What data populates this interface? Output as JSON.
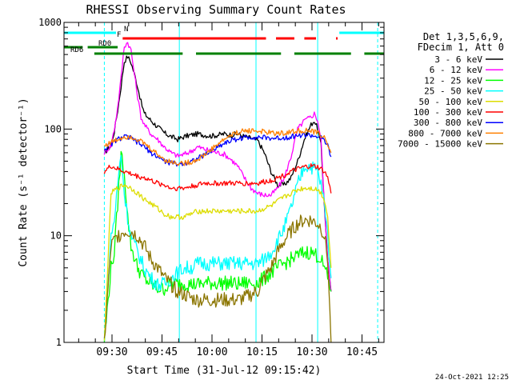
{
  "chart_data": {
    "type": "line",
    "title": "RHESSI Observing Summary Count Rates",
    "xlabel": "Start Time (31-Jul-12 09:15:42)",
    "ylabel": "Count Rate (s⁻¹ detector⁻¹)",
    "y_scale": "log",
    "ylim": [
      1,
      1000
    ],
    "xlim": [
      0,
      94
    ],
    "x_unit": "minutes after 09:15:42",
    "yticks": [
      {
        "label": "1",
        "value": 1
      },
      {
        "label": "10",
        "value": 10
      },
      {
        "label": "100",
        "value": 100
      },
      {
        "label": "1000",
        "value": 1000
      }
    ],
    "xticks": [
      {
        "label": "09:30",
        "value": 14.3
      },
      {
        "label": "09:45",
        "value": 29.3
      },
      {
        "label": "10:00",
        "value": 44.3
      },
      {
        "label": "10:15",
        "value": 59.3
      },
      {
        "label": "10:30",
        "value": 74.3
      },
      {
        "label": "10:45",
        "value": 89.3
      }
    ],
    "legend_header": [
      "Det 1,3,5,6,9,",
      "FDecim 1, Att 0"
    ],
    "series": [
      {
        "name": "3 - 6 keV",
        "color": "#000000",
        "x": [
          12,
          14,
          15,
          16,
          17,
          18,
          19,
          20,
          21,
          22,
          23,
          24,
          26,
          28,
          30,
          32,
          34,
          36,
          38,
          40,
          42,
          44,
          46,
          48,
          50,
          52,
          54,
          56,
          58,
          60,
          62,
          64,
          66,
          68,
          70,
          72,
          74,
          75,
          76,
          77,
          78,
          79,
          80
        ],
        "y": [
          60,
          70,
          95,
          150,
          250,
          430,
          480,
          420,
          330,
          250,
          180,
          140,
          120,
          105,
          92,
          85,
          80,
          85,
          88,
          90,
          88,
          86,
          88,
          90,
          88,
          90,
          85,
          82,
          78,
          60,
          40,
          30,
          30,
          35,
          50,
          80,
          110,
          120,
          100,
          70,
          20,
          6,
          3
        ]
      },
      {
        "name": "6 - 12 keV",
        "color": "#ff00ff",
        "x": [
          12,
          14,
          15,
          16,
          17,
          18,
          19,
          20,
          21,
          22,
          23,
          24,
          26,
          28,
          30,
          32,
          34,
          36,
          38,
          40,
          42,
          44,
          46,
          48,
          50,
          52,
          54,
          56,
          58,
          60,
          62,
          64,
          66,
          68,
          70,
          72,
          74,
          75,
          76,
          77,
          78,
          79,
          80
        ],
        "y": [
          60,
          70,
          100,
          160,
          300,
          600,
          650,
          550,
          330,
          200,
          130,
          110,
          90,
          80,
          68,
          60,
          56,
          58,
          62,
          68,
          65,
          62,
          60,
          58,
          52,
          45,
          35,
          28,
          25,
          24,
          24,
          28,
          35,
          55,
          100,
          120,
          130,
          140,
          120,
          80,
          20,
          6,
          3
        ]
      },
      {
        "name": "12 - 25 keV",
        "color": "#00ff00",
        "x": [
          12,
          14,
          15,
          16,
          17,
          18,
          19,
          20,
          22,
          24,
          26,
          28,
          30,
          32,
          34,
          36,
          38,
          40,
          42,
          44,
          46,
          48,
          50,
          52,
          54,
          56,
          58,
          60,
          62,
          64,
          66,
          68,
          70,
          72,
          74,
          76,
          77,
          78,
          79,
          80
        ],
        "y": [
          1,
          5,
          7,
          20,
          60,
          40,
          15,
          8,
          5,
          4,
          3.5,
          3.2,
          3.2,
          3.5,
          3.6,
          3.6,
          3.5,
          3.5,
          3.6,
          3.6,
          3.6,
          3.6,
          3.6,
          3.5,
          3.6,
          3.6,
          3.6,
          4,
          4.5,
          5,
          5.5,
          6,
          6.5,
          7,
          7,
          6.5,
          6,
          5,
          4,
          3
        ]
      },
      {
        "name": "25 - 50 keV",
        "color": "#00ffff",
        "x": [
          12,
          14,
          15,
          16,
          17,
          18,
          19,
          20,
          22,
          24,
          26,
          28,
          30,
          32,
          34,
          36,
          38,
          40,
          42,
          44,
          46,
          48,
          50,
          52,
          54,
          56,
          58,
          60,
          62,
          64,
          66,
          68,
          70,
          72,
          74,
          76,
          77,
          78,
          79,
          80
        ],
        "y": [
          1,
          10,
          14,
          30,
          60,
          25,
          15,
          10,
          7,
          5,
          4,
          3.5,
          3.5,
          4,
          4.5,
          5,
          5,
          5.5,
          5.5,
          5.5,
          5.5,
          5.5,
          5.5,
          5.5,
          5.5,
          5.5,
          5.5,
          6,
          7,
          9,
          12,
          18,
          30,
          45,
          45,
          40,
          30,
          20,
          10,
          4
        ]
      },
      {
        "name": "50 - 100 keV",
        "color": "#dddd00",
        "x": [
          12,
          14,
          16,
          18,
          20,
          22,
          24,
          26,
          28,
          30,
          32,
          34,
          36,
          38,
          40,
          42,
          44,
          46,
          48,
          50,
          52,
          54,
          56,
          58,
          60,
          62,
          64,
          66,
          68,
          70,
          72,
          74,
          76,
          77,
          78,
          79,
          80
        ],
        "y": [
          1,
          25,
          28,
          30,
          28,
          25,
          22,
          20,
          18,
          16,
          15,
          15,
          15,
          16,
          17,
          17,
          17,
          17,
          17,
          17,
          17,
          17,
          17,
          17,
          18,
          19,
          21,
          23,
          25,
          27,
          28,
          28,
          27,
          25,
          22,
          15,
          5
        ]
      },
      {
        "name": "100 - 300 keV",
        "color": "#ff0000",
        "x": [
          12,
          14,
          16,
          18,
          20,
          22,
          24,
          26,
          28,
          30,
          32,
          34,
          36,
          38,
          40,
          42,
          44,
          46,
          48,
          50,
          52,
          54,
          56,
          58,
          60,
          62,
          64,
          66,
          68,
          70,
          72,
          74,
          76,
          77,
          78,
          79,
          80
        ],
        "y": [
          40,
          45,
          42,
          40,
          38,
          36,
          35,
          33,
          31,
          30,
          28,
          28,
          28,
          29,
          30,
          31,
          31,
          31,
          31,
          31,
          31,
          31,
          31,
          31,
          32,
          33,
          35,
          37,
          40,
          42,
          44,
          45,
          44,
          42,
          40,
          35,
          25
        ]
      },
      {
        "name": "300 - 800 keV",
        "color": "#0000ff",
        "x": [
          12,
          14,
          16,
          18,
          20,
          22,
          24,
          26,
          28,
          30,
          32,
          34,
          36,
          38,
          40,
          42,
          44,
          46,
          48,
          50,
          52,
          54,
          56,
          58,
          60,
          62,
          64,
          66,
          68,
          70,
          72,
          74,
          76,
          77,
          78,
          79,
          80
        ],
        "y": [
          65,
          72,
          80,
          85,
          82,
          75,
          68,
          60,
          55,
          50,
          48,
          47,
          48,
          50,
          53,
          57,
          62,
          68,
          74,
          78,
          81,
          83,
          84,
          84,
          83,
          82,
          82,
          83,
          85,
          87,
          88,
          87,
          85,
          82,
          78,
          70,
          55
        ]
      },
      {
        "name": "800 - 7000 keV",
        "color": "#ff8000",
        "x": [
          12,
          14,
          16,
          18,
          20,
          22,
          24,
          26,
          28,
          30,
          32,
          34,
          36,
          38,
          40,
          42,
          44,
          46,
          48,
          50,
          52,
          54,
          56,
          58,
          60,
          62,
          64,
          66,
          68,
          70,
          72,
          74,
          76,
          77,
          78,
          79,
          80
        ],
        "y": [
          70,
          75,
          80,
          85,
          85,
          80,
          73,
          65,
          58,
          52,
          49,
          48,
          48,
          49,
          52,
          57,
          64,
          72,
          80,
          88,
          93,
          96,
          97,
          96,
          94,
          92,
          91,
          92,
          94,
          96,
          97,
          95,
          92,
          88,
          82,
          74,
          60
        ]
      },
      {
        "name": "7000 - 15000 keV",
        "color": "#8b7500",
        "x": [
          12,
          14,
          16,
          18,
          20,
          22,
          24,
          26,
          28,
          30,
          32,
          34,
          36,
          38,
          40,
          42,
          44,
          46,
          48,
          50,
          52,
          54,
          56,
          58,
          60,
          62,
          64,
          66,
          68,
          70,
          72,
          74,
          76,
          77,
          78,
          79,
          80
        ],
        "y": [
          1,
          8,
          10,
          11,
          11,
          10,
          8,
          6,
          5,
          4,
          3.5,
          3,
          2.8,
          2.6,
          2.5,
          2.5,
          2.5,
          2.5,
          2.5,
          2.5,
          2.5,
          2.6,
          2.8,
          3,
          4,
          5,
          7,
          9,
          11,
          13,
          14,
          14,
          13,
          12,
          10,
          6,
          1
        ]
      }
    ],
    "annotations": {
      "night_bar": {
        "label": "N",
        "color": "#00ffff",
        "segments": [
          [
            -12,
            15.5
          ],
          [
            82.5,
            101
          ]
        ]
      },
      "flare_bar": {
        "label": "F",
        "color": "#ff0000",
        "segments": [
          [
            17.5,
            60.5
          ],
          [
            63.5,
            69
          ],
          [
            72,
            75.5
          ],
          [
            81.5,
            82
          ]
        ]
      },
      "rd0_bar": {
        "label": "RD0",
        "color": "#008000",
        "segments": [
          [
            -12,
            5.5
          ],
          [
            7,
            16
          ]
        ]
      },
      "rd6_bar": {
        "label": "RD6",
        "color": "#008000",
        "segments": [
          [
            9,
            35.5
          ],
          [
            39.5,
            65
          ],
          [
            69,
            86
          ],
          [
            90,
            101
          ]
        ]
      },
      "solid_verticals": {
        "color": "#00ffff",
        "x": [
          -0.5,
          34.5,
          57.5,
          76
        ]
      },
      "dashed_verticals": {
        "color": "#00ffff",
        "x": [
          12,
          94
        ]
      },
      "night_shading": [
        [
          -12,
          12
        ],
        [
          76,
          94
        ]
      ]
    },
    "footer": "24-Oct-2021 12:25"
  }
}
